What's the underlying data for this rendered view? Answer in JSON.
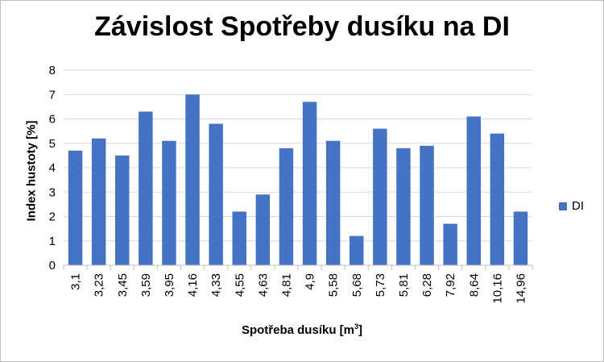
{
  "chart_data": {
    "type": "bar",
    "title": "Závislost Spotřeby dusíku na DI",
    "xlabel": "Spotřeba dusíku",
    "xlabel_unit": "[m",
    "xlabel_unit_sup": "3",
    "xlabel_unit_close": "]",
    "ylabel": "Index hustoty [%]",
    "categories": [
      "3,1",
      "3,23",
      "3,45",
      "3,59",
      "3,95",
      "4,16",
      "4,33",
      "4,55",
      "4,63",
      "4,81",
      "4,9",
      "5,58",
      "5,68",
      "5,73",
      "5,81",
      "6,28",
      "7,92",
      "8,64",
      "10,16",
      "14,96"
    ],
    "series": [
      {
        "name": "DI",
        "values": [
          4.7,
          5.2,
          4.5,
          6.3,
          5.1,
          7.0,
          5.8,
          2.2,
          2.9,
          4.8,
          6.7,
          5.1,
          1.2,
          5.6,
          4.8,
          4.9,
          1.7,
          6.1,
          5.4,
          2.2
        ]
      }
    ],
    "ylim": [
      0,
      8
    ],
    "yticks": [
      0,
      1,
      2,
      3,
      4,
      5,
      6,
      7,
      8
    ],
    "grid": true,
    "legend": "right",
    "bar_color": "#4472c4",
    "grid_color": "#d9d9d9"
  }
}
